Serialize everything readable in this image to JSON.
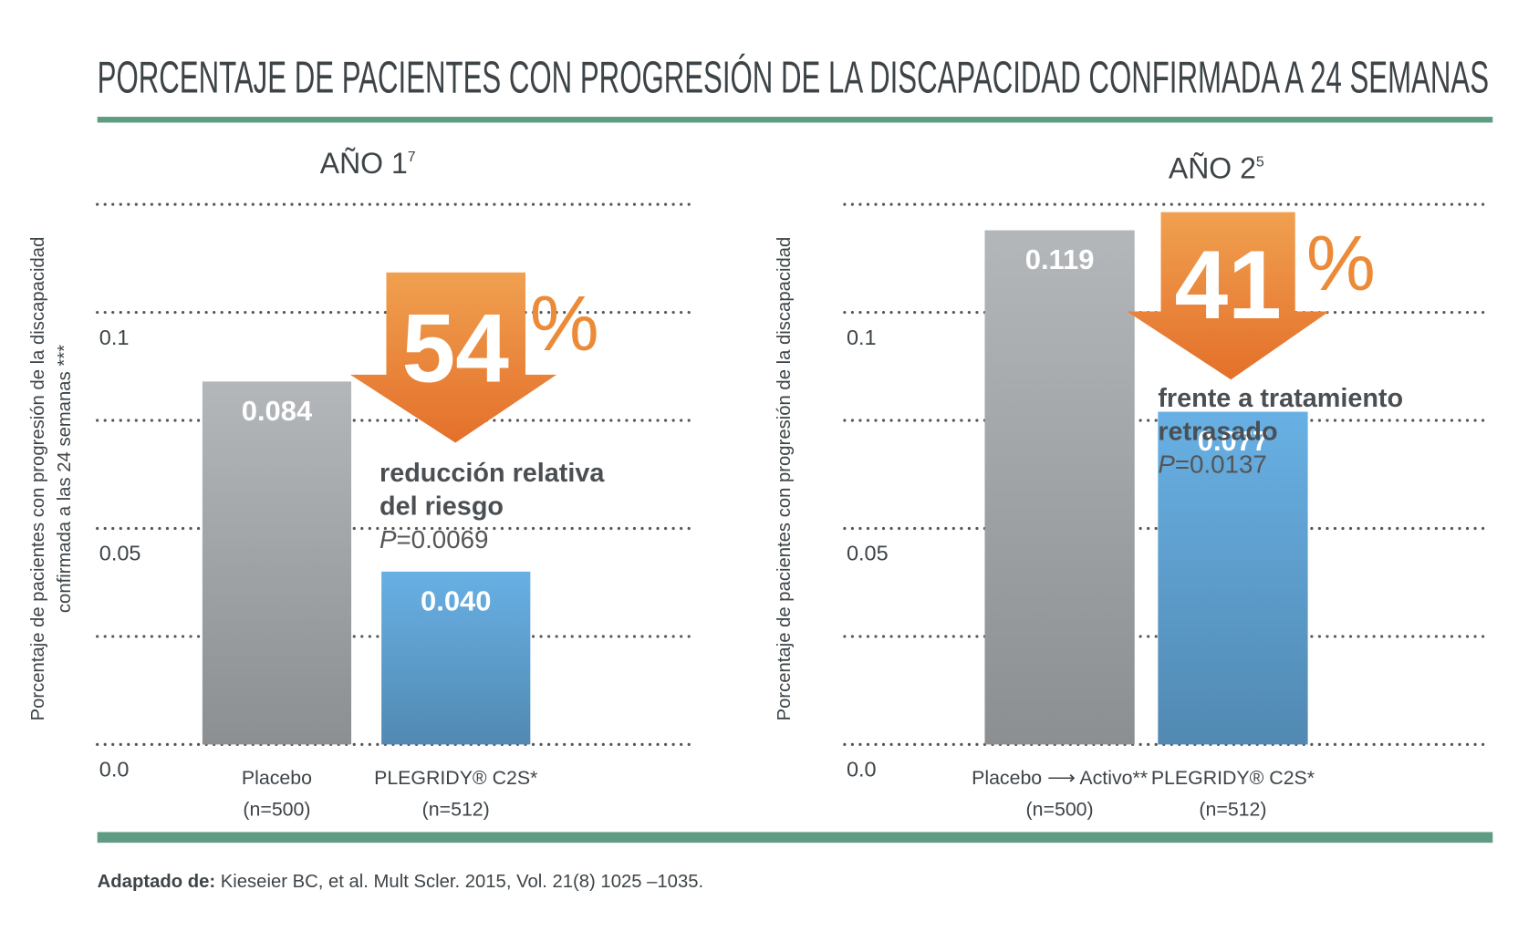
{
  "title": "PORCENTAJE DE PACIENTES CON PROGRESIÓN DE LA DISCAPACIDAD CONFIRMADA A 24 SEMANAS",
  "source_label": "Adaptado de:",
  "source": "Kieseier BC, et al. Mult Scler. 2015, Vol. 21(8) 1025 –1035.",
  "chart_data": [
    {
      "type": "bar",
      "subtitle": "AÑO 1",
      "subtitle_ref": "7",
      "ylabel": [
        "Porcentaje de pacientes con progresión de la discapacidad",
        "confirmada a las 24 semanas ***"
      ],
      "categories": [
        "Placebo",
        "PLEGRIDY® C2S*"
      ],
      "category_notes": [
        "(n=500)",
        "(n=512)"
      ],
      "values": [
        0.084,
        0.04
      ],
      "value_labels": [
        "0.084",
        "0.040"
      ],
      "colors": [
        "#b3b7ba",
        "#68b0e4"
      ],
      "ylim": [
        0,
        0.125
      ],
      "yticks": [
        {
          "value": 0,
          "label": "0.0"
        },
        0.05,
        0.1
      ],
      "grid_values": [
        0,
        0.025,
        0.05,
        0.075,
        0.1,
        0.125
      ],
      "reduction": 54,
      "reduction_unit": "%",
      "annotation_lines": [
        "reducción relativa",
        "del riesgo"
      ],
      "p_symbol": "P",
      "p_text": "=0.0069"
    },
    {
      "type": "bar",
      "subtitle": "AÑO 2",
      "subtitle_ref": "5",
      "ylabel": [
        "Porcentaje de pacientes con progresión de la discapacidad"
      ],
      "categories": [
        "Placebo ⟶ Activo**",
        "PLEGRIDY® C2S*"
      ],
      "category_notes": [
        "(n=500)",
        "(n=512)"
      ],
      "values": [
        0.119,
        0.077
      ],
      "value_labels": [
        "0.119",
        "0.077"
      ],
      "colors": [
        "#b3b7ba",
        "#68b0e4"
      ],
      "ylim": [
        0,
        0.125
      ],
      "yticks": [
        {
          "value": 0,
          "label": "0.0"
        },
        0.05,
        0.1
      ],
      "grid_values": [
        0,
        0.025,
        0.05,
        0.075,
        0.1,
        0.125
      ],
      "reduction": 41,
      "reduction_unit": "%",
      "annotation_lines": [
        "frente a tratamiento",
        "retrasado"
      ],
      "p_symbol": "P",
      "p_text": "=0.0137"
    }
  ]
}
